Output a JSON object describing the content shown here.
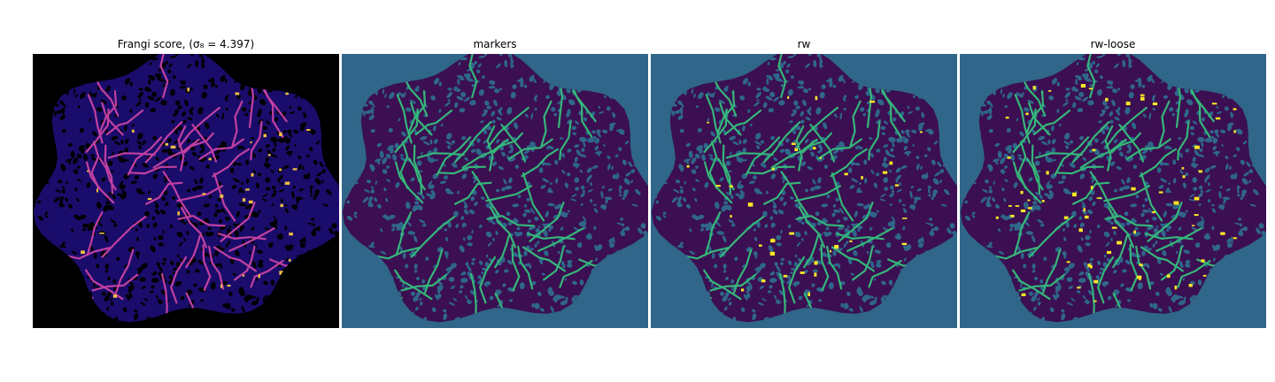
{
  "figure": {
    "panels": [
      {
        "id": "frangi",
        "title": "Frangi score, (σ₈ = 4.397)",
        "background": "#000000",
        "blob": "#1a0c6b",
        "pores": "#000000",
        "vessel": "#c040a0",
        "highlight": "#f0c040"
      },
      {
        "id": "markers",
        "title": "markers",
        "background": "#2f6689",
        "blob": "#3b0f52",
        "pores": "#2f6689",
        "vessel": "#35b779"
      },
      {
        "id": "rw",
        "title": "rw",
        "background": "#2f6689",
        "blob": "#3b0f52",
        "pores": "#2f6689",
        "vessel": "#35b779",
        "highlight": "#fde725"
      },
      {
        "id": "rw-loose",
        "title": "rw-loose",
        "background": "#2f6689",
        "blob": "#3b0f52",
        "pores": "#2f6689",
        "vessel": "#35b779",
        "highlight": "#fde725"
      }
    ]
  }
}
